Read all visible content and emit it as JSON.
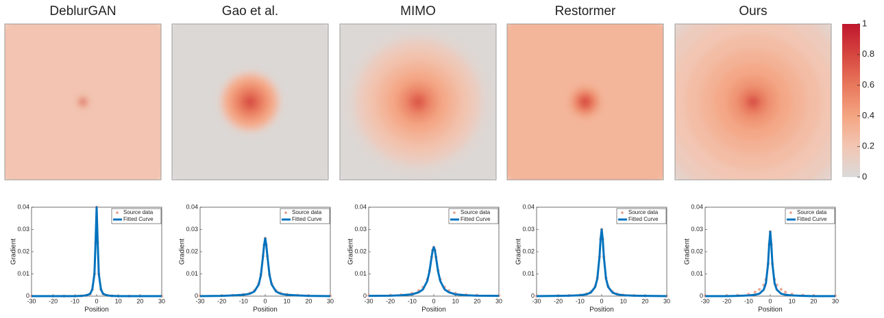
{
  "chart_data": [
    {
      "type": "heatmap",
      "title": "DeblurGAN",
      "xlim": [
        -30,
        30
      ],
      "ylim": [
        -30,
        30
      ],
      "radii": [
        43,
        2.2,
        1.6,
        1.1,
        0.6
      ],
      "values": [
        0.21,
        0.26,
        0.6,
        0.8,
        0.88
      ]
    },
    {
      "type": "heatmap",
      "title": "Gao et al.",
      "xlim": [
        -30,
        30
      ],
      "ylim": [
        -30,
        30
      ],
      "radii": [
        43,
        13,
        11,
        9,
        7,
        5,
        3,
        1.5,
        0.5
      ],
      "values": [
        0.02,
        0.05,
        0.3,
        0.4,
        0.5,
        0.6,
        0.7,
        0.8,
        0.9
      ]
    },
    {
      "type": "heatmap",
      "title": "MIMO",
      "xlim": [
        -30,
        30
      ],
      "ylim": [
        -30,
        30
      ],
      "radii": [
        43,
        28,
        24,
        20,
        16,
        12,
        8,
        5,
        3,
        1
      ],
      "values": [
        0.02,
        0.05,
        0.15,
        0.22,
        0.3,
        0.38,
        0.48,
        0.58,
        0.68,
        0.85
      ]
    },
    {
      "type": "heatmap",
      "title": "Restormer",
      "xlim": [
        -30,
        30
      ],
      "ylim": [
        -30,
        30
      ],
      "radii": [
        43,
        7,
        5.5,
        4,
        3,
        2,
        1,
        0.5
      ],
      "values": [
        0.3,
        0.33,
        0.45,
        0.55,
        0.65,
        0.75,
        0.85,
        0.9
      ]
    },
    {
      "type": "heatmap",
      "title": "Ours",
      "xlim": [
        -30,
        30
      ],
      "ylim": [
        -30,
        30
      ],
      "radii": [
        43,
        38,
        32,
        26,
        20,
        15,
        10,
        6,
        3,
        1
      ],
      "values": [
        0.08,
        0.15,
        0.2,
        0.26,
        0.32,
        0.38,
        0.46,
        0.56,
        0.7,
        0.9
      ]
    },
    {
      "type": "line",
      "xlabel": "Position",
      "ylabel": "Gradient",
      "xlim": [
        -30,
        30
      ],
      "ylim": [
        0,
        0.04
      ],
      "xticks": [
        -30,
        -20,
        -10,
        0,
        10,
        20,
        30
      ],
      "yticks": [
        0,
        0.01,
        0.02,
        0.03,
        0.04
      ],
      "x": [
        -30,
        -20,
        -15,
        -10,
        -7,
        -5,
        -3,
        -2,
        -1,
        -0.5,
        0,
        0.5,
        1,
        2,
        3,
        5,
        7,
        10,
        15,
        20,
        30
      ],
      "series": [
        {
          "name": "Source data",
          "color": "#e89a86",
          "values": [
            0,
            0,
            0,
            0,
            0.0001,
            0.0003,
            0.001,
            0.003,
            0.01,
            0.024,
            0.04,
            0.024,
            0.01,
            0.003,
            0.001,
            0.0003,
            0.0001,
            0,
            0,
            0,
            0
          ]
        },
        {
          "name": "Fitted Curve",
          "color": "#0072bd",
          "values": [
            0,
            0,
            0,
            0,
            0.0001,
            0.0003,
            0.001,
            0.003,
            0.01,
            0.024,
            0.04,
            0.024,
            0.01,
            0.003,
            0.001,
            0.0003,
            0.0001,
            0,
            0,
            0,
            0
          ]
        }
      ]
    },
    {
      "type": "line",
      "xlabel": "Position",
      "ylabel": "Gradient",
      "xlim": [
        -30,
        30
      ],
      "ylim": [
        0,
        0.04
      ],
      "xticks": [
        -30,
        -20,
        -10,
        0,
        10,
        20,
        30
      ],
      "yticks": [
        0,
        0.01,
        0.02,
        0.03,
        0.04
      ],
      "x": [
        -30,
        -20,
        -15,
        -10,
        -7,
        -5,
        -3,
        -2,
        -1,
        -0.5,
        0,
        0.5,
        1,
        2,
        3,
        5,
        7,
        10,
        15,
        20,
        30
      ],
      "series": [
        {
          "name": "Source data",
          "color": "#e89a86",
          "values": [
            0.0001,
            0.0002,
            0.0004,
            0.0008,
            0.0014,
            0.0025,
            0.0056,
            0.0096,
            0.018,
            0.023,
            0.026,
            0.023,
            0.018,
            0.0096,
            0.0056,
            0.0025,
            0.0014,
            0.0008,
            0.0004,
            0.0002,
            0.0001
          ]
        },
        {
          "name": "Fitted Curve",
          "color": "#0072bd",
          "values": [
            0,
            0.0001,
            0.0003,
            0.0006,
            0.0011,
            0.0021,
            0.0052,
            0.0094,
            0.018,
            0.023,
            0.026,
            0.023,
            0.018,
            0.0094,
            0.0052,
            0.0021,
            0.0011,
            0.0006,
            0.0003,
            0.0001,
            0
          ]
        }
      ]
    },
    {
      "type": "line",
      "xlabel": "Position",
      "ylabel": "Gradient",
      "xlim": [
        -30,
        30
      ],
      "ylim": [
        0,
        0.04
      ],
      "xticks": [
        -30,
        -20,
        -10,
        0,
        10,
        20,
        30
      ],
      "yticks": [
        0,
        0.01,
        0.02,
        0.03,
        0.04
      ],
      "x": [
        -30,
        -20,
        -15,
        -10,
        -7,
        -5,
        -3,
        -2,
        -1,
        -0.5,
        0,
        0.5,
        1,
        2,
        3,
        5,
        7,
        10,
        15,
        20,
        30
      ],
      "series": [
        {
          "name": "Source data",
          "color": "#e89a86",
          "values": [
            0.0002,
            0.0004,
            0.0006,
            0.0013,
            0.0025,
            0.004,
            0.0075,
            0.0115,
            0.0176,
            0.0207,
            0.022,
            0.0207,
            0.0176,
            0.0115,
            0.0075,
            0.004,
            0.0025,
            0.0013,
            0.0006,
            0.0004,
            0.0002
          ]
        },
        {
          "name": "Fitted Curve",
          "color": "#0072bd",
          "values": [
            0.0001,
            0.0002,
            0.0004,
            0.0008,
            0.0017,
            0.003,
            0.0068,
            0.011,
            0.0176,
            0.0207,
            0.022,
            0.0207,
            0.0176,
            0.011,
            0.0068,
            0.003,
            0.0017,
            0.0008,
            0.0004,
            0.0002,
            0.0001
          ]
        }
      ]
    },
    {
      "type": "line",
      "xlabel": "Position",
      "ylabel": "Gradient",
      "xlim": [
        -30,
        30
      ],
      "ylim": [
        0,
        0.04
      ],
      "xticks": [
        -30,
        -20,
        -10,
        0,
        10,
        20,
        30
      ],
      "yticks": [
        0,
        0.01,
        0.02,
        0.03,
        0.04
      ],
      "x": [
        -30,
        -20,
        -15,
        -10,
        -7,
        -5,
        -3,
        -2,
        -1,
        -0.5,
        0,
        0.5,
        1,
        2,
        3,
        5,
        7,
        10,
        15,
        20,
        30
      ],
      "series": [
        {
          "name": "Source data",
          "color": "#e89a86",
          "values": [
            0,
            0.0001,
            0.0003,
            0.0005,
            0.001,
            0.002,
            0.0045,
            0.0082,
            0.0177,
            0.0256,
            0.03,
            0.0256,
            0.0177,
            0.0082,
            0.0045,
            0.002,
            0.001,
            0.0005,
            0.0003,
            0.0001,
            0
          ]
        },
        {
          "name": "Fitted Curve",
          "color": "#0072bd",
          "values": [
            0,
            0.0001,
            0.0002,
            0.0004,
            0.0008,
            0.0016,
            0.0041,
            0.0079,
            0.0177,
            0.0256,
            0.03,
            0.0256,
            0.0177,
            0.0079,
            0.0041,
            0.0016,
            0.0008,
            0.0004,
            0.0002,
            0.0001,
            0
          ]
        }
      ]
    },
    {
      "type": "line",
      "xlabel": "Position",
      "ylabel": "Gradient",
      "xlim": [
        -30,
        30
      ],
      "ylim": [
        0,
        0.04
      ],
      "xticks": [
        -30,
        -20,
        -10,
        0,
        10,
        20,
        30
      ],
      "yticks": [
        0,
        0.01,
        0.02,
        0.03,
        0.04
      ],
      "x": [
        -30,
        -20,
        -15,
        -10,
        -7,
        -5,
        -3,
        -2,
        -1,
        -0.5,
        0,
        0.5,
        1,
        2,
        3,
        5,
        7,
        10,
        15,
        20,
        30
      ],
      "series": [
        {
          "name": "Source data",
          "color": "#e89a86",
          "values": [
            0.0001,
            0.0002,
            0.0004,
            0.0009,
            0.0018,
            0.003,
            0.005,
            0.0075,
            0.0145,
            0.0232,
            0.029,
            0.0232,
            0.0145,
            0.0075,
            0.005,
            0.003,
            0.0018,
            0.0009,
            0.0004,
            0.0002,
            0.0001
          ]
        },
        {
          "name": "Fitted Curve",
          "color": "#0072bd",
          "values": [
            0,
            0,
            0.0001,
            0.0003,
            0.0006,
            0.0011,
            0.0029,
            0.0058,
            0.0145,
            0.0232,
            0.029,
            0.0232,
            0.0145,
            0.0058,
            0.0029,
            0.0011,
            0.0006,
            0.0003,
            0.0001,
            0,
            0
          ]
        }
      ]
    }
  ],
  "colorbar": {
    "lim": [
      0,
      1
    ],
    "ticks": [
      0,
      0.2,
      0.4,
      0.6,
      0.8,
      1
    ],
    "colors": [
      "#dadada",
      "#f2c6b3",
      "#f4a582",
      "#e8785c",
      "#d6463f",
      "#c0172e"
    ]
  }
}
